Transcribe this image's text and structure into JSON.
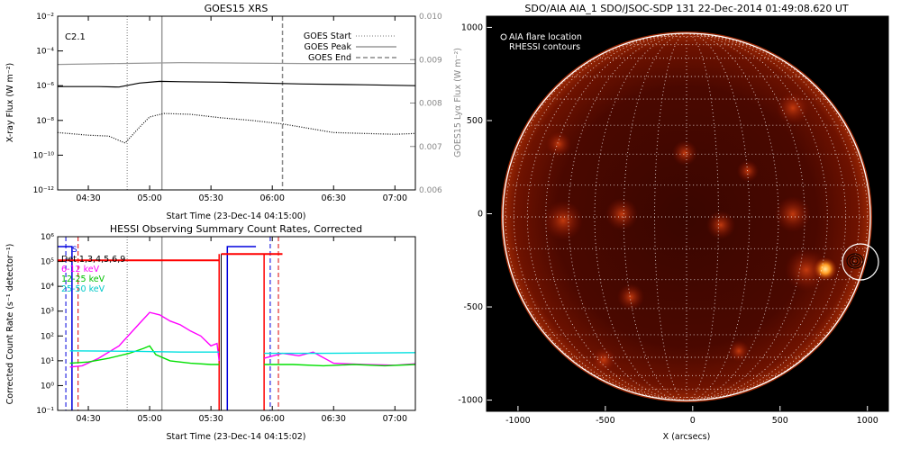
{
  "chart_data": [
    {
      "type": "line",
      "title": "GOES15 XRS",
      "xlabel": "Start Time (23-Dec-14 04:15:00)",
      "ylabel": "X-ray Flux (W m⁻²)",
      "ylabel_right": "GOES15 Lyα Flux (W m⁻²)",
      "annotation": "C2.1",
      "x_ticks": [
        "04:30",
        "05:00",
        "05:30",
        "06:00",
        "06:30",
        "07:00"
      ],
      "x_ticks_min": [
        15,
        45,
        75,
        105,
        135,
        165
      ],
      "xlim_min": [
        0,
        175
      ],
      "y_ticks": [
        "10⁻¹²",
        "10⁻¹⁰",
        "10⁻⁸",
        "10⁻⁶",
        "10⁻⁴",
        "10⁻²"
      ],
      "y_ticks_exp": [
        -12,
        -10,
        -8,
        -6,
        -4,
        -2
      ],
      "ylim_log": [
        -12,
        -2
      ],
      "y2_ticks": [
        "0.006",
        "0.007",
        "0.008",
        "0.009",
        "0.010"
      ],
      "y2lim": [
        0.006,
        0.01
      ],
      "legend": [
        {
          "label": "GOES Start",
          "style": "dotted",
          "color": "#777777"
        },
        {
          "label": "GOES Peak",
          "style": "solid",
          "color": "#999999"
        },
        {
          "label": "GOES End",
          "style": "dashed",
          "color": "#888888"
        }
      ],
      "markers_min": {
        "start": 34,
        "peak": 51,
        "end": 110
      },
      "series": [
        {
          "key": "lyman_alpha",
          "color": "#999999",
          "axis": "right",
          "x_min": [
            0,
            30,
            60,
            90,
            120,
            150,
            175
          ],
          "values": [
            0.00889,
            0.00891,
            0.00893,
            0.00892,
            0.00891,
            0.00891,
            0.00891
          ]
        },
        {
          "key": "long_channel",
          "color": "#000000",
          "axis": "left",
          "log10": true,
          "x_min": [
            0,
            20,
            30,
            40,
            50,
            60,
            80,
            100,
            120,
            150,
            175
          ],
          "values": [
            -6.05,
            -6.05,
            -6.08,
            -5.85,
            -5.75,
            -5.77,
            -5.8,
            -5.85,
            -5.9,
            -5.95,
            -6.0
          ]
        },
        {
          "key": "short_channel",
          "color": "#000000",
          "style": "dotted",
          "axis": "left",
          "log10": true,
          "x_min": [
            0,
            15,
            25,
            33,
            40,
            45,
            52,
            65,
            80,
            95,
            110,
            120,
            135,
            150,
            165,
            175
          ],
          "values": [
            -8.7,
            -8.85,
            -8.9,
            -9.3,
            -8.4,
            -7.8,
            -7.6,
            -7.65,
            -7.85,
            -8.0,
            -8.2,
            -8.4,
            -8.7,
            -8.75,
            -8.8,
            -8.75
          ]
        }
      ]
    },
    {
      "type": "line",
      "title": "HESSI Observing Summary Count Rates, Corrected",
      "xlabel": "Start Time (23-Dec-14 04:15:02)",
      "ylabel": "Corrected Count Rate (s⁻¹ detector⁻¹)",
      "x_ticks": [
        "04:30",
        "05:00",
        "05:30",
        "06:00",
        "06:30",
        "07:00"
      ],
      "x_ticks_min": [
        15,
        45,
        75,
        105,
        135,
        165
      ],
      "xlim_min": [
        0,
        175
      ],
      "y_ticks": [
        "10⁻¹",
        "10⁰",
        "10¹",
        "10²",
        "10³",
        "10⁴",
        "10⁵",
        "10⁶"
      ],
      "y_ticks_exp": [
        -1,
        0,
        1,
        2,
        3,
        4,
        5,
        6
      ],
      "ylim_log": [
        -1,
        6
      ],
      "flag_label": "S",
      "legend": [
        {
          "label": "Det 1,3,4,5,6,9",
          "color": "#000000"
        },
        {
          "label": "6-12 keV",
          "color": "#ff00ff"
        },
        {
          "label": "12-25 keV",
          "color": "#00e000"
        },
        {
          "label": "25-50 keV",
          "color": "#00e0e0"
        }
      ],
      "series": [
        {
          "key": "6-12 keV",
          "color": "#ff00ff",
          "segments": [
            {
              "x_min": [
                6,
                12,
                20,
                30,
                40,
                45,
                50,
                55,
                60,
                65,
                70,
                75,
                78,
                79
              ],
              "values": [
                0.75,
                0.8,
                1.1,
                1.6,
                2.5,
                2.95,
                2.85,
                2.6,
                2.45,
                2.2,
                2.0,
                1.6,
                1.7,
                1.0
              ]
            },
            {
              "x_min": [
                101,
                110,
                118,
                125,
                135,
                150,
                165,
                175
              ],
              "values": [
                1.1,
                1.3,
                1.2,
                1.35,
                0.9,
                0.85,
                0.82,
                0.88
              ]
            }
          ]
        },
        {
          "key": "12-25 keV",
          "color": "#00e000",
          "segments": [
            {
              "x_min": [
                6,
                15,
                25,
                35,
                42,
                45,
                48,
                55,
                65,
                75,
                79
              ],
              "values": [
                0.9,
                0.95,
                1.1,
                1.3,
                1.5,
                1.6,
                1.25,
                1.0,
                0.9,
                0.85,
                0.85
              ]
            },
            {
              "x_min": [
                101,
                115,
                130,
                145,
                160,
                175
              ],
              "values": [
                0.85,
                0.85,
                0.8,
                0.85,
                0.8,
                0.85
              ]
            }
          ]
        },
        {
          "key": "25-50 keV",
          "color": "#00e0e0",
          "segments": [
            {
              "x_min": [
                6,
                40,
                60,
                79
              ],
              "values": [
                1.4,
                1.38,
                1.35,
                1.35
              ]
            },
            {
              "x_min": [
                101,
                130,
                175
              ],
              "values": [
                1.3,
                1.3,
                1.33
              ]
            }
          ]
        },
        {
          "key": "attenuator",
          "color": "#ff0000",
          "segments": [
            {
              "x_min": [
                0,
                79
              ],
              "values": [
                5.05,
                5.05
              ]
            },
            {
              "x_min": [
                80,
                110
              ],
              "values": [
                5.3,
                5.3
              ]
            }
          ]
        }
      ]
    },
    {
      "type": "heatmap",
      "title": "SDO/AIA AIA_1 SDO/JSOC-SDP 131 22-Dec-2014 01:49:08.620 UT",
      "xlabel": "X (arcsecs)",
      "x_ticks": [
        "-1000",
        "-500",
        "0",
        "500",
        "1000"
      ],
      "y_ticks": [
        "-1000",
        "-500",
        "0",
        "500",
        "1000"
      ],
      "xlim": [
        -1180,
        1120
      ],
      "ylim": [
        -1060,
        1060
      ],
      "solar_radius": 970,
      "grid_step_deg": 10,
      "flare": {
        "x": 935,
        "y": -250,
        "circle_radius": 100
      },
      "legend": [
        "AIA flare location",
        "RHESSI contours"
      ]
    }
  ]
}
